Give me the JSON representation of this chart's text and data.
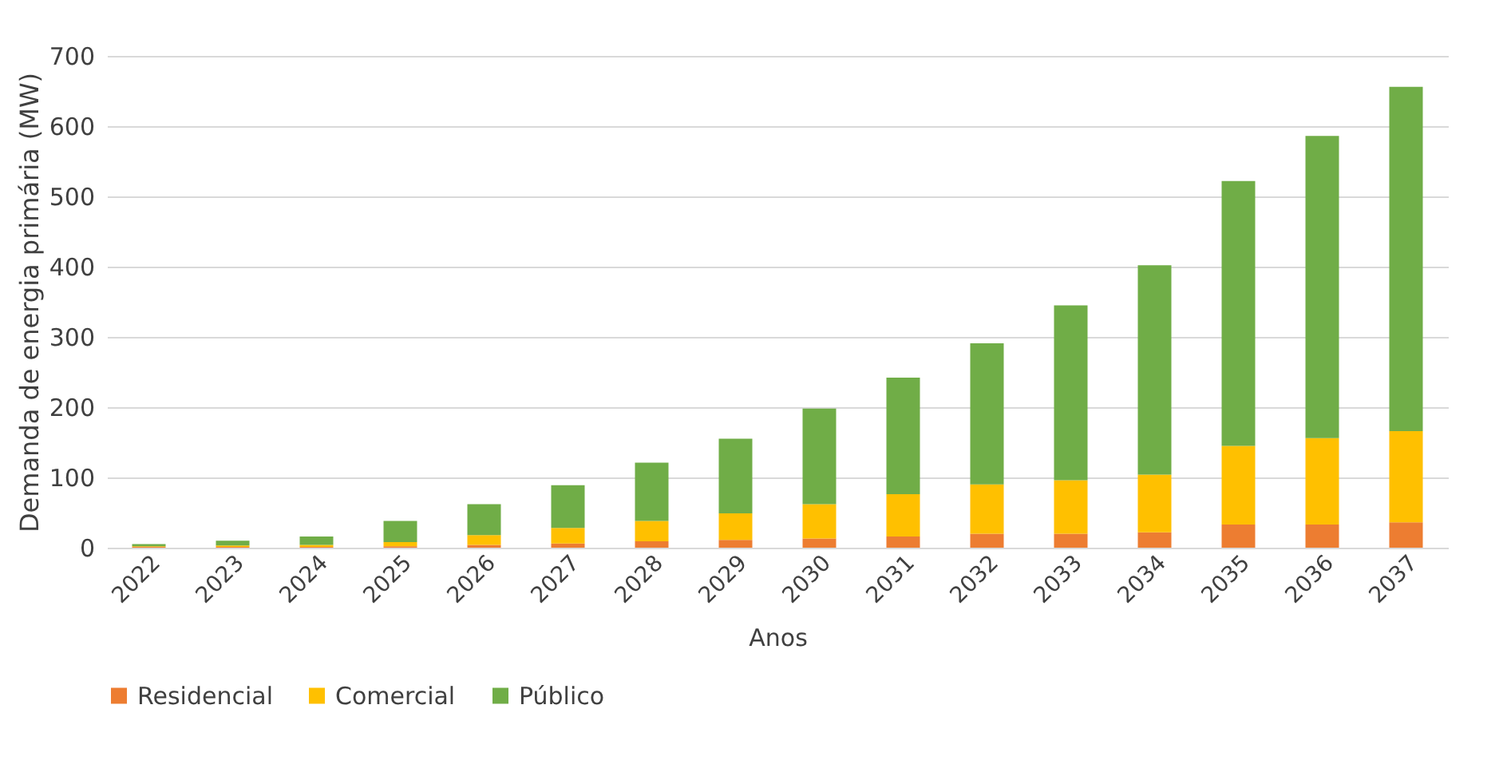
{
  "chart_data": {
    "type": "bar",
    "stacked": true,
    "xlabel": "Anos",
    "ylabel": "Demanda de energia primária (MW)",
    "categories": [
      "2022",
      "2023",
      "2024",
      "2025",
      "2026",
      "2027",
      "2028",
      "2029",
      "2030",
      "2031",
      "2032",
      "2033",
      "2034",
      "2035",
      "2036",
      "2037"
    ],
    "series": [
      {
        "name": "Residencial",
        "color": "#ed7d31",
        "values": [
          1,
          1,
          1,
          2,
          4,
          6,
          9,
          11,
          13,
          16,
          20,
          20,
          22,
          33,
          33,
          36
        ]
      },
      {
        "name": "Comercial",
        "color": "#ffc000",
        "values": [
          1,
          2,
          3,
          6,
          14,
          22,
          29,
          38,
          49,
          60,
          70,
          76,
          82,
          112,
          123,
          130
        ]
      },
      {
        "name": "Público",
        "color": "#70ad47",
        "values": [
          3,
          7,
          12,
          30,
          44,
          61,
          83,
          106,
          136,
          166,
          201,
          249,
          298,
          377,
          430,
          490
        ]
      }
    ],
    "ylim": [
      0,
      700
    ],
    "yticks": [
      0,
      100,
      200,
      300,
      400,
      500,
      600,
      700
    ],
    "grid": "y",
    "legend": "bottom"
  }
}
